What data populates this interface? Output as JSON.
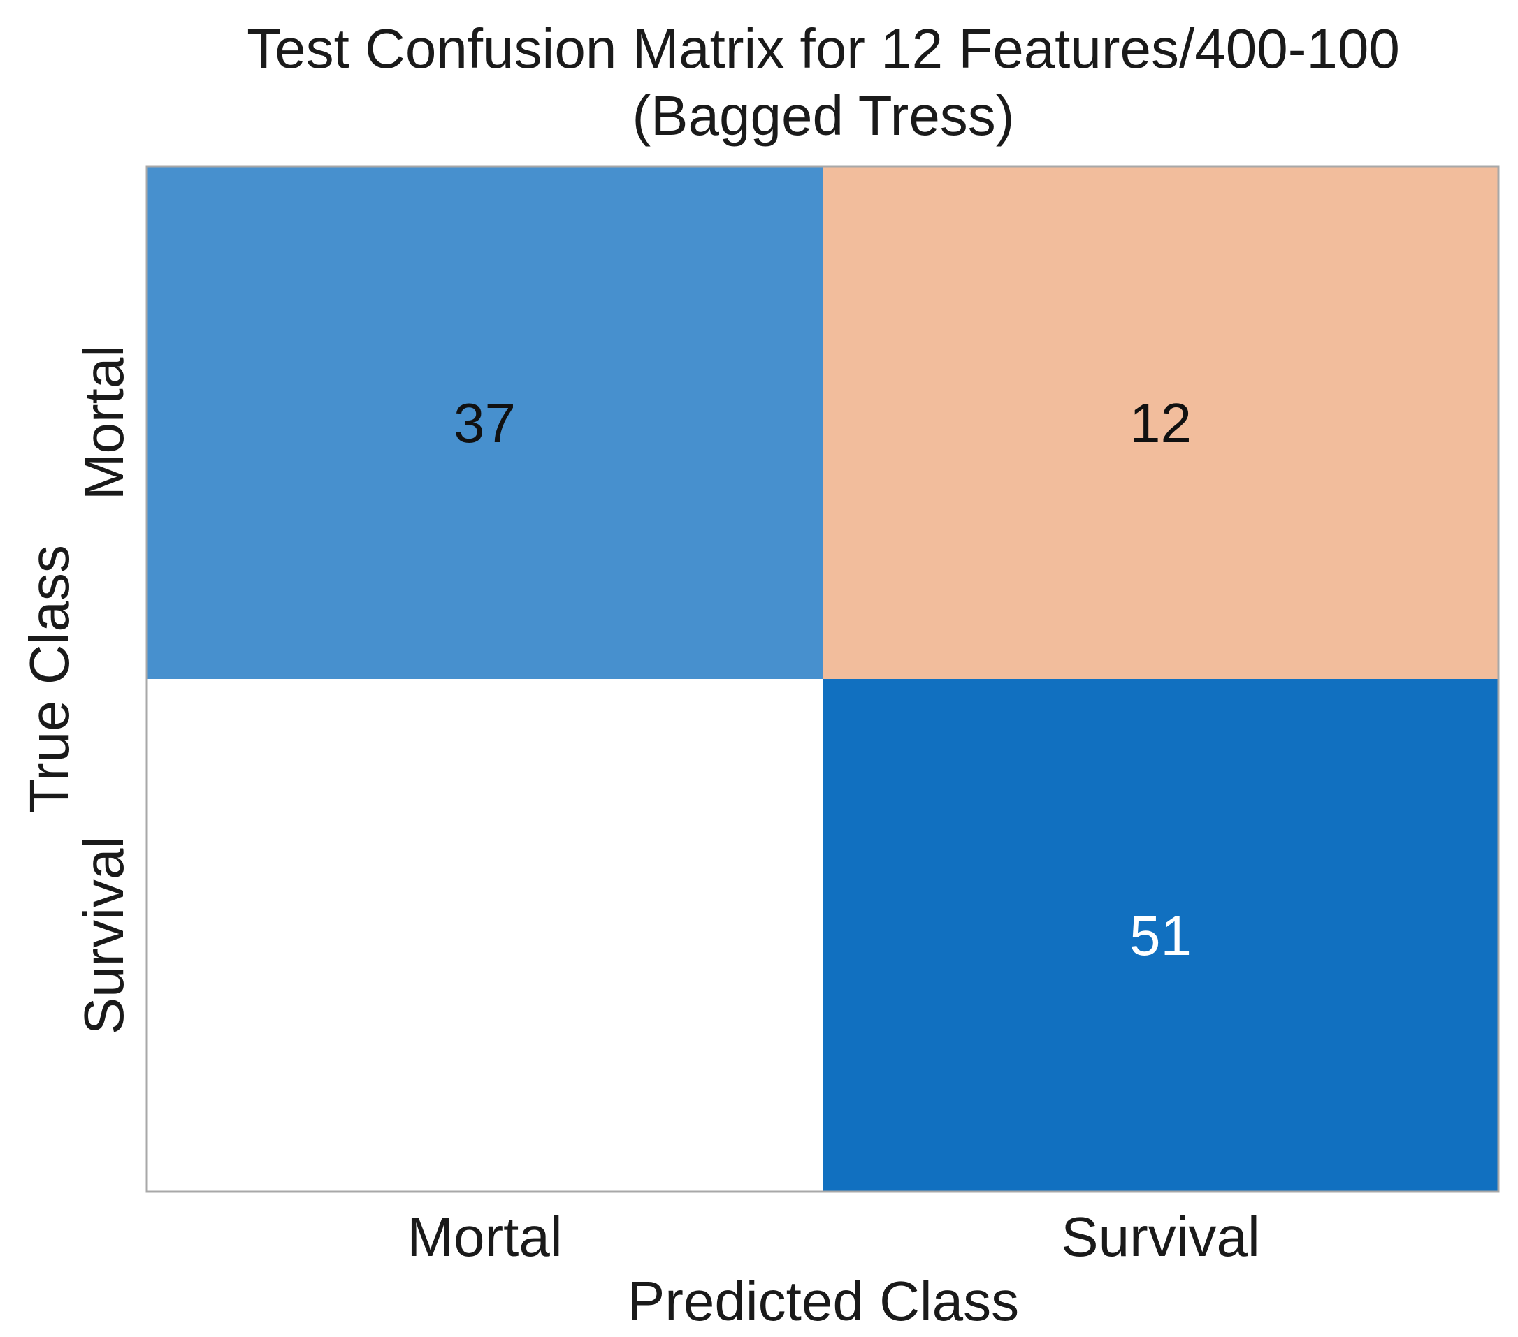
{
  "chart_data": {
    "type": "heatmap",
    "title": "Test Confusion Matrix for 12 Features/400-100",
    "subtitle": "(Bagged Tress)",
    "xlabel": "Predicted Class",
    "ylabel": "True Class",
    "x_categories": [
      "Mortal",
      "Survival"
    ],
    "y_categories": [
      "Mortal",
      "Survival"
    ],
    "matrix": [
      [
        37,
        12
      ],
      [
        null,
        51
      ]
    ],
    "cell_colors": [
      [
        "#4790CE",
        "#F2BD9C"
      ],
      [
        "#FFFFFF",
        "#1170C0"
      ]
    ],
    "label_colors": [
      [
        "#111111",
        "#111111"
      ],
      [
        "#111111",
        "#FFFFFF"
      ]
    ],
    "grid": false
  }
}
